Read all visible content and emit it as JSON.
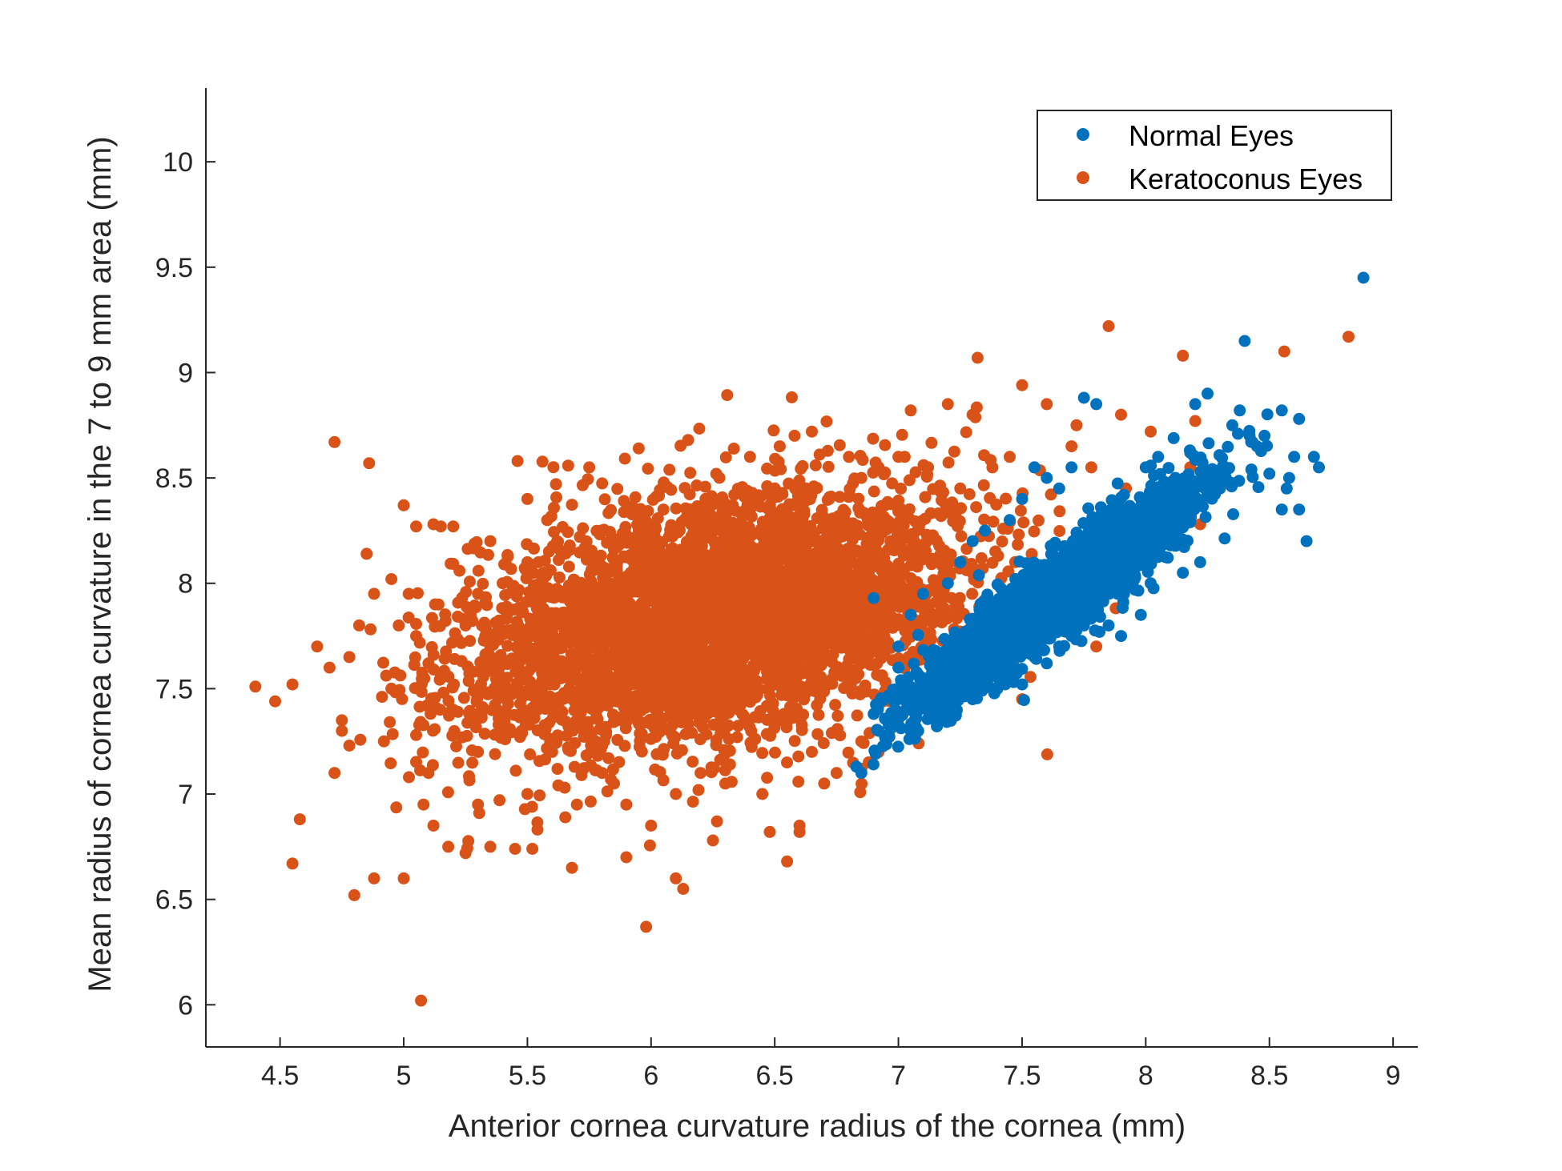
{
  "chart_data": {
    "type": "scatter",
    "xlabel": "Anterior cornea curvature radius of the cornea (mm)",
    "ylabel": "Mean radius of cornea curvature in the 7 to 9 mm area (mm)",
    "xlim": [
      4.2,
      9.1
    ],
    "ylim": [
      5.8,
      10.35
    ],
    "xticks": [
      "4.5",
      "5",
      "5.5",
      "6",
      "6.5",
      "7",
      "7.5",
      "8",
      "8.5",
      "9"
    ],
    "yticks": [
      "6",
      "6.5",
      "7",
      "7.5",
      "8",
      "8.5",
      "9",
      "9.5",
      "10"
    ],
    "grid": false,
    "legend_position": "top-right",
    "series": [
      {
        "name": "Normal Eyes",
        "color": "#0072BD",
        "cloud": {
          "x_mean": 7.65,
          "x_sd": 0.28,
          "slope": 0.85,
          "intercept": 1.45,
          "resid_sd": 0.1,
          "x_min": 6.85,
          "x_max": 8.7
        },
        "points": [
          [
            8.88,
            9.45
          ],
          [
            8.4,
            9.15
          ],
          [
            7.75,
            8.88
          ],
          [
            7.8,
            8.85
          ],
          [
            8.25,
            8.9
          ],
          [
            8.55,
            8.82
          ],
          [
            8.62,
            8.78
          ],
          [
            8.48,
            8.7
          ],
          [
            8.6,
            8.6
          ],
          [
            8.7,
            8.55
          ],
          [
            8.68,
            8.6
          ],
          [
            8.5,
            8.52
          ],
          [
            8.55,
            8.35
          ],
          [
            8.57,
            8.45
          ],
          [
            8.58,
            8.5
          ],
          [
            8.42,
            8.7
          ],
          [
            8.38,
            8.82
          ],
          [
            8.35,
            8.75
          ],
          [
            8.2,
            8.85
          ],
          [
            8.18,
            8.62
          ],
          [
            8.12,
            8.5
          ],
          [
            8.05,
            8.6
          ],
          [
            8.0,
            8.55
          ],
          [
            8.1,
            8.35
          ],
          [
            8.08,
            8.3
          ],
          [
            8.15,
            8.05
          ],
          [
            8.02,
            8.0
          ],
          [
            7.98,
            7.85
          ],
          [
            7.9,
            8.0
          ],
          [
            7.8,
            7.9
          ],
          [
            6.85,
            7.1
          ],
          [
            6.83,
            7.13
          ],
          [
            6.9,
            7.93
          ],
          [
            6.9,
            7.38
          ],
          [
            6.92,
            7.3
          ],
          [
            7.05,
            7.3
          ],
          [
            7.08,
            7.3
          ],
          [
            7.15,
            7.4
          ],
          [
            7.2,
            7.35
          ],
          [
            7.3,
            7.45
          ],
          [
            7.4,
            7.5
          ],
          [
            7.5,
            7.52
          ],
          [
            7.45,
            7.7
          ],
          [
            7.6,
            7.62
          ],
          [
            7.65,
            7.7
          ],
          [
            7.0,
            7.7
          ],
          [
            7.05,
            7.85
          ],
          [
            7.1,
            7.95
          ],
          [
            7.2,
            8.0
          ],
          [
            7.25,
            8.1
          ],
          [
            7.3,
            8.2
          ],
          [
            7.35,
            8.25
          ],
          [
            7.45,
            8.3
          ],
          [
            7.5,
            8.4
          ],
          [
            7.55,
            8.55
          ],
          [
            7.6,
            8.5
          ],
          [
            7.65,
            8.45
          ],
          [
            7.7,
            8.55
          ],
          [
            7.0,
            7.6
          ],
          [
            7.1,
            7.55
          ],
          [
            7.15,
            7.5
          ],
          [
            7.22,
            7.65
          ],
          [
            7.28,
            7.55
          ],
          [
            7.35,
            7.6
          ],
          [
            7.42,
            7.6
          ],
          [
            7.55,
            7.65
          ],
          [
            7.7,
            7.75
          ],
          [
            7.75,
            7.8
          ],
          [
            7.85,
            7.8
          ],
          [
            7.9,
            7.75
          ],
          [
            7.95,
            8.15
          ],
          [
            8.22,
            8.1
          ],
          [
            8.3,
            8.45
          ],
          [
            8.45,
            8.65
          ],
          [
            8.62,
            8.35
          ],
          [
            8.65,
            8.2
          ]
        ]
      },
      {
        "name": "Keratoconus Eyes",
        "color": "#D95319",
        "cloud": {
          "x_mean": 6.25,
          "x_sd": 0.5,
          "slope": 0.22,
          "intercept": 6.45,
          "resid_sd": 0.28,
          "x_min": 4.8,
          "x_max": 7.9
        },
        "points": [
          [
            4.4,
            7.51
          ],
          [
            4.48,
            7.44
          ],
          [
            4.55,
            7.52
          ],
          [
            4.55,
            6.67
          ],
          [
            4.58,
            6.88
          ],
          [
            4.72,
            8.67
          ],
          [
            4.8,
            6.52
          ],
          [
            4.88,
            6.6
          ],
          [
            5.0,
            6.6
          ],
          [
            5.07,
            6.02
          ],
          [
            4.86,
            8.57
          ],
          [
            5.0,
            8.37
          ],
          [
            5.05,
            8.27
          ],
          [
            5.15,
            8.27
          ],
          [
            5.2,
            8.27
          ],
          [
            5.12,
            8.28
          ],
          [
            4.85,
            8.14
          ],
          [
            4.72,
            7.1
          ],
          [
            4.75,
            7.3
          ],
          [
            4.78,
            7.65
          ],
          [
            4.88,
            7.95
          ],
          [
            4.95,
            8.02
          ],
          [
            4.98,
            7.8
          ],
          [
            5.02,
            7.95
          ],
          [
            5.1,
            7.62
          ],
          [
            4.92,
            7.25
          ],
          [
            5.08,
            6.95
          ],
          [
            5.12,
            6.85
          ],
          [
            5.18,
            6.75
          ],
          [
            5.25,
            6.72
          ],
          [
            5.35,
            6.75
          ],
          [
            5.45,
            6.74
          ],
          [
            5.52,
            6.74
          ],
          [
            5.68,
            6.65
          ],
          [
            5.9,
            6.7
          ],
          [
            5.98,
            6.37
          ],
          [
            6.1,
            6.6
          ],
          [
            6.13,
            6.55
          ],
          [
            6.25,
            6.78
          ],
          [
            6.55,
            6.68
          ],
          [
            6.6,
            6.85
          ],
          [
            6.6,
            6.82
          ],
          [
            5.46,
            8.58
          ],
          [
            5.35,
            8.2
          ],
          [
            5.4,
            8.0
          ],
          [
            5.5,
            8.4
          ],
          [
            5.58,
            8.3
          ],
          [
            5.75,
            8.55
          ],
          [
            5.95,
            8.64
          ],
          [
            6.15,
            8.68
          ],
          [
            6.4,
            8.6
          ],
          [
            6.52,
            8.65
          ],
          [
            6.58,
            8.7
          ],
          [
            6.65,
            8.72
          ],
          [
            6.8,
            8.6
          ],
          [
            6.92,
            8.55
          ],
          [
            7.05,
            8.82
          ],
          [
            7.2,
            8.85
          ],
          [
            7.3,
            8.8
          ],
          [
            7.32,
            9.07
          ],
          [
            7.5,
            8.94
          ],
          [
            7.6,
            8.85
          ],
          [
            7.72,
            8.75
          ],
          [
            7.85,
            9.22
          ],
          [
            7.9,
            8.8
          ],
          [
            8.15,
            9.08
          ],
          [
            8.2,
            8.77
          ],
          [
            8.56,
            9.1
          ],
          [
            8.82,
            9.17
          ],
          [
            8.02,
            8.72
          ],
          [
            8.18,
            8.55
          ],
          [
            8.12,
            8.35
          ],
          [
            8.22,
            8.28
          ],
          [
            7.5,
            7.45
          ],
          [
            7.8,
            7.7
          ],
          [
            6.7,
            7.05
          ],
          [
            6.75,
            7.1
          ],
          [
            6.92,
            7.2
          ],
          [
            6.45,
            7.0
          ],
          [
            6.3,
            7.05
          ],
          [
            6.1,
            7.0
          ],
          [
            5.9,
            6.95
          ],
          [
            5.7,
            6.95
          ],
          [
            5.5,
            7.0
          ],
          [
            5.3,
            6.95
          ],
          [
            6.48,
            6.82
          ],
          [
            6.0,
            6.85
          ],
          [
            5.85,
            7.05
          ],
          [
            5.1,
            7.1
          ],
          [
            5.3,
            7.2
          ],
          [
            5.6,
            7.2
          ],
          [
            6.2,
            7.1
          ],
          [
            6.65,
            7.2
          ],
          [
            6.85,
            7.25
          ],
          [
            6.88,
            7.15
          ],
          [
            6.85,
            7.12
          ],
          [
            5.05,
            7.28
          ],
          [
            4.75,
            7.35
          ],
          [
            4.78,
            7.23
          ],
          [
            4.95,
            7.5
          ],
          [
            5.05,
            7.75
          ],
          [
            5.3,
            7.95
          ],
          [
            5.5,
            8.1
          ],
          [
            5.62,
            8.2
          ],
          [
            5.8,
            8.25
          ],
          [
            5.95,
            8.25
          ],
          [
            6.05,
            8.35
          ],
          [
            6.22,
            8.4
          ],
          [
            6.5,
            8.45
          ],
          [
            6.72,
            8.4
          ],
          [
            6.85,
            8.5
          ],
          [
            7.0,
            8.6
          ],
          [
            7.12,
            8.55
          ],
          [
            7.25,
            8.45
          ],
          [
            7.38,
            8.55
          ],
          [
            7.45,
            8.6
          ],
          [
            7.55,
            8.55
          ],
          [
            7.7,
            8.65
          ],
          [
            7.78,
            8.55
          ],
          [
            7.92,
            8.45
          ],
          [
            7.95,
            8.35
          ],
          [
            5.2,
            7.4
          ],
          [
            5.4,
            7.5
          ],
          [
            5.25,
            7.8
          ],
          [
            4.65,
            7.7
          ],
          [
            4.7,
            7.6
          ],
          [
            4.82,
            7.8
          ]
        ]
      }
    ]
  }
}
